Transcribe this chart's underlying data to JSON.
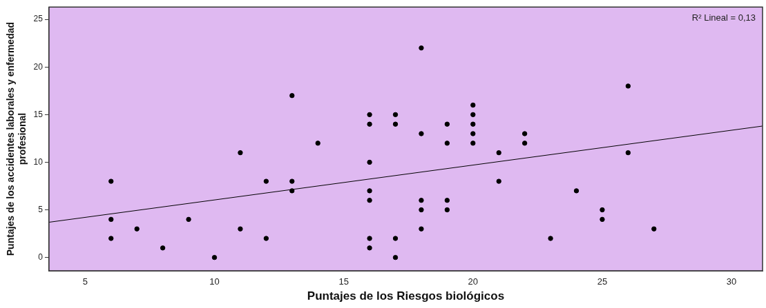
{
  "chart_data": {
    "type": "scatter",
    "xlabel": "Puntajes de los Riesgos biológicos",
    "ylabel": "Puntajes de los accidentes laborales y enfermedad profesional",
    "xlim": [
      3.6,
      31.2
    ],
    "xticks": [
      5,
      10,
      15,
      20,
      25,
      30
    ],
    "ylim": [
      -1.4,
      26.3
    ],
    "yticks": [
      0,
      5,
      10,
      15,
      20,
      25
    ],
    "grid": false,
    "legend": false,
    "marker": "circle",
    "annotations": [
      "R² Lineal = 0,13"
    ],
    "series": [
      {
        "type": "scatter",
        "color": "#000000",
        "x": [
          6,
          6,
          6,
          7,
          8,
          9,
          10,
          11,
          11,
          12,
          12,
          13,
          13,
          13,
          14,
          16,
          16,
          16,
          16,
          16,
          16,
          16,
          17,
          17,
          17,
          17,
          18,
          18,
          18,
          18,
          18,
          19,
          19,
          19,
          19,
          20,
          20,
          20,
          20,
          20,
          21,
          21,
          22,
          22,
          23,
          24,
          25,
          25,
          26,
          26,
          27
        ],
        "values": [
          8,
          4,
          2,
          3,
          1,
          4,
          0,
          11,
          3,
          8,
          2,
          17,
          8,
          7,
          12,
          15,
          14,
          10,
          7,
          6,
          2,
          1,
          15,
          14,
          2,
          0,
          22,
          13,
          6,
          5,
          3,
          14,
          12,
          6,
          5,
          16,
          15,
          14,
          13,
          12,
          11,
          8,
          13,
          12,
          2,
          7,
          5,
          4,
          18,
          11,
          3
        ]
      },
      {
        "type": "line",
        "color": "#000000",
        "marker": "none",
        "line_style": "solid",
        "x": [
          3.6,
          31.2
        ],
        "values": [
          3.7,
          13.8
        ]
      }
    ]
  }
}
